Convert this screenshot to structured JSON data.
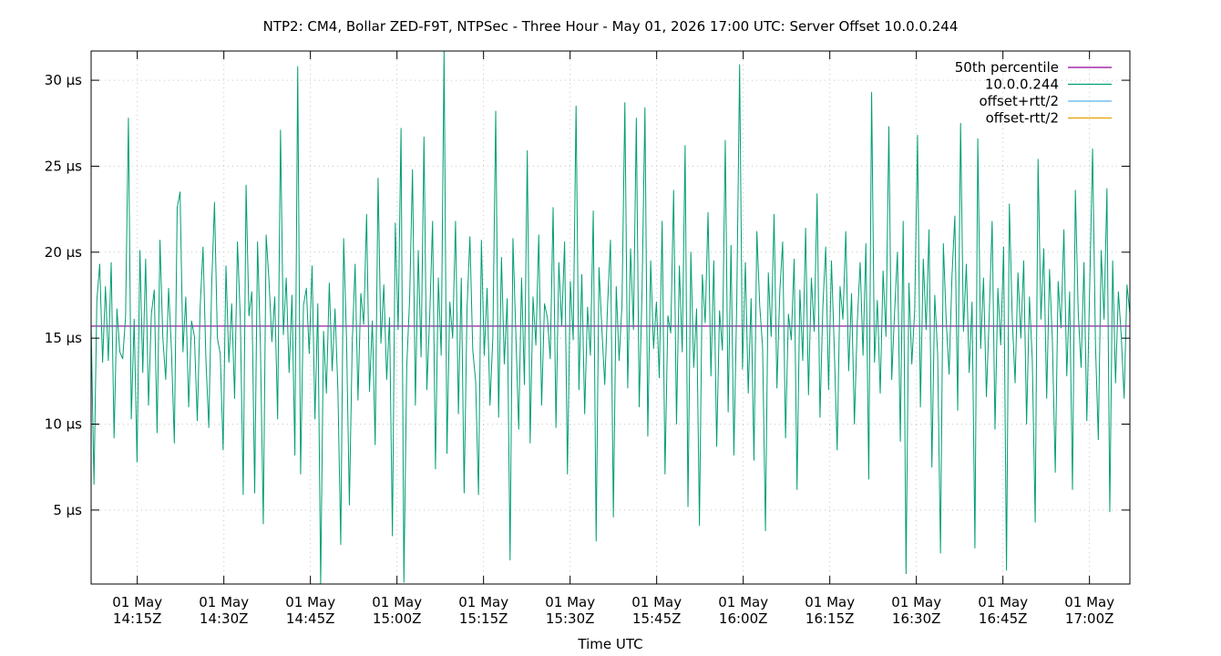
{
  "chart_data": {
    "type": "line",
    "title": "NTP2: CM4, Bollar ZED-F9T, NTPSec - Three Hour - May 01, 2026 17:00 UTC: Server Offset 10.0.0.244",
    "xlabel": "Time UTC",
    "ylabel": "",
    "ylim": [
      0.7,
      31.7
    ],
    "xlim_minutes": [
      "2026-05-01T14:07Z",
      "2026-05-01T17:07Z"
    ],
    "grid": true,
    "legend_position": "top-right",
    "yticks": [
      {
        "value": 5,
        "label": "5 µs"
      },
      {
        "value": 10,
        "label": "10 µs"
      },
      {
        "value": 15,
        "label": "15 µs"
      },
      {
        "value": 20,
        "label": "20 µs"
      },
      {
        "value": 25,
        "label": "25 µs"
      },
      {
        "value": 30,
        "label": "30 µs"
      }
    ],
    "xticks": [
      {
        "value": "2026-05-01T14:15Z",
        "line1": "01 May",
        "line2": "14:15Z"
      },
      {
        "value": "2026-05-01T14:30Z",
        "line1": "01 May",
        "line2": "14:30Z"
      },
      {
        "value": "2026-05-01T14:45Z",
        "line1": "01 May",
        "line2": "14:45Z"
      },
      {
        "value": "2026-05-01T15:00Z",
        "line1": "01 May",
        "line2": "15:00Z"
      },
      {
        "value": "2026-05-01T15:15Z",
        "line1": "01 May",
        "line2": "15:15Z"
      },
      {
        "value": "2026-05-01T15:30Z",
        "line1": "01 May",
        "line2": "15:30Z"
      },
      {
        "value": "2026-05-01T15:45Z",
        "line1": "01 May",
        "line2": "15:45Z"
      },
      {
        "value": "2026-05-01T16:00Z",
        "line1": "01 May",
        "line2": "16:00Z"
      },
      {
        "value": "2026-05-01T16:15Z",
        "line1": "01 May",
        "line2": "16:15Z"
      },
      {
        "value": "2026-05-01T16:30Z",
        "line1": "01 May",
        "line2": "16:30Z"
      },
      {
        "value": "2026-05-01T16:45Z",
        "line1": "01 May",
        "line2": "16:45Z"
      },
      {
        "value": "2026-05-01T17:00Z",
        "line1": "01 May",
        "line2": "17:00Z"
      }
    ],
    "series": [
      {
        "name": "50th percentile",
        "color": "#94009b",
        "type": "hline",
        "value": 15.7
      },
      {
        "name": "10.0.0.244",
        "color": "#009e73",
        "x_start": "2026-05-01T14:07Z",
        "x_end": "2026-05-01T17:07Z",
        "values": [
          15.8,
          6.5,
          17.2,
          19.3,
          13.6,
          18.0,
          13.7,
          19.4,
          9.2,
          16.7,
          14.2,
          13.8,
          16.2,
          27.8,
          10.3,
          16.1,
          7.8,
          20.1,
          13.0,
          19.6,
          11.1,
          16.4,
          17.8,
          9.5,
          20.7,
          15.0,
          12.6,
          17.9,
          14.3,
          8.9,
          22.6,
          23.5,
          14.2,
          17.4,
          11.0,
          16.0,
          15.1,
          10.2,
          16.8,
          20.3,
          13.8,
          9.8,
          18.0,
          22.9,
          15.0,
          14.1,
          8.5,
          19.2,
          13.6,
          17.0,
          11.5,
          20.6,
          16.1,
          5.9,
          23.9,
          16.3,
          17.7,
          6.0,
          20.6,
          14.6,
          4.2,
          21.0,
          18.3,
          14.8,
          17.4,
          10.3,
          27.1,
          15.2,
          18.5,
          13.0,
          17.5,
          8.2,
          30.8,
          7.1,
          16.9,
          17.9,
          14.1,
          19.2,
          10.3,
          17.0,
          0.7,
          15.4,
          11.8,
          18.2,
          13.1,
          16.7,
          12.0,
          3.0,
          20.8,
          15.0,
          5.3,
          14.7,
          19.3,
          11.4,
          17.6,
          15.8,
          22.2,
          11.9,
          16.0,
          8.8,
          24.3,
          14.7,
          18.1,
          12.6,
          16.2,
          3.5,
          21.7,
          15.5,
          27.2,
          0.8,
          13.4,
          17.3,
          24.8,
          11.1,
          20.1,
          13.9,
          26.7,
          12.0,
          16.3,
          21.8,
          7.4,
          18.5,
          14.0,
          31.7,
          8.3,
          17.1,
          15.0,
          21.8,
          10.6,
          18.5,
          6.0,
          16.7,
          20.9,
          14.3,
          12.5,
          5.9,
          20.7,
          14.0,
          17.9,
          11.1,
          15.0,
          28.2,
          10.4,
          19.7,
          13.5,
          17.3,
          2.1,
          20.8,
          15.3,
          9.7,
          18.5,
          12.3,
          25.9,
          8.9,
          17.4,
          14.6,
          21.0,
          11.1,
          17.0,
          16.2,
          13.8,
          22.6,
          9.8,
          19.4,
          15.7,
          20.6,
          7.1,
          18.3,
          14.9,
          28.5,
          12.0,
          18.7,
          10.6,
          16.8,
          14.0,
          22.4,
          3.2,
          19.1,
          15.5,
          12.3,
          17.0,
          20.7,
          4.6,
          18.0,
          13.7,
          16.9,
          28.7,
          12.1,
          20.2,
          15.5,
          27.8,
          11.0,
          17.7,
          28.4,
          9.3,
          19.5,
          14.4,
          17.1,
          12.7,
          21.8,
          7.1,
          16.3,
          15.3,
          23.6,
          10.0,
          19.2,
          14.2,
          26.2,
          5.2,
          20.0,
          13.3,
          16.7,
          4.1,
          18.7,
          15.9,
          22.3,
          12.8,
          19.5,
          8.7,
          16.6,
          14.3,
          26.5,
          10.7,
          20.4,
          8.2,
          17.1,
          30.9,
          13.2,
          19.4,
          11.8,
          17.3,
          7.9,
          21.2,
          16.9,
          14.5,
          3.8,
          18.8,
          15.1,
          22.2,
          12.1,
          17.7,
          20.6,
          9.2,
          16.4,
          14.9,
          19.6,
          6.2,
          17.8,
          13.7,
          21.4,
          11.7,
          18.5,
          15.4,
          23.4,
          10.4,
          16.8,
          20.3,
          12.0,
          19.5,
          14.3,
          8.5,
          18.0,
          16.1,
          21.2,
          13.1,
          17.6,
          10.0,
          15.9,
          19.4,
          14.0,
          20.5,
          6.8,
          29.3,
          13.6,
          17.2,
          11.8,
          18.9,
          15.1,
          27.3,
          12.6,
          16.5,
          20.0,
          9.0,
          21.8,
          1.3,
          18.2,
          13.5,
          16.6,
          26.8,
          11.0,
          19.6,
          15.5,
          21.3,
          7.5,
          17.5,
          14.1,
          2.5,
          20.5,
          16.0,
          12.9,
          18.6,
          22.1,
          10.8,
          27.5,
          15.4,
          19.3,
          13.0,
          17.1,
          2.8,
          26.6,
          14.4,
          18.5,
          11.6,
          16.4,
          21.8,
          9.7,
          17.9,
          14.6,
          20.3,
          1.5,
          22.8,
          16.2,
          12.4,
          18.8,
          15.0,
          19.5,
          10.0,
          17.4,
          13.7,
          4.3,
          25.4,
          16.1,
          20.2,
          11.5,
          19.0,
          14.8,
          7.2,
          18.3,
          15.6,
          21.3,
          12.8,
          17.7,
          6.2,
          23.6,
          16.5,
          13.3,
          19.4,
          10.2,
          18.0,
          26.0,
          14.7,
          9.1,
          20.1,
          16.1,
          23.7,
          4.9,
          19.5,
          12.4,
          17.7,
          15.1,
          11.5,
          18.1,
          16.4
        ]
      },
      {
        "name": "offset+rtt/2",
        "color": "#56b4e9"
      },
      {
        "name": "offset-rtt/2",
        "color": "#e69f00"
      }
    ]
  }
}
